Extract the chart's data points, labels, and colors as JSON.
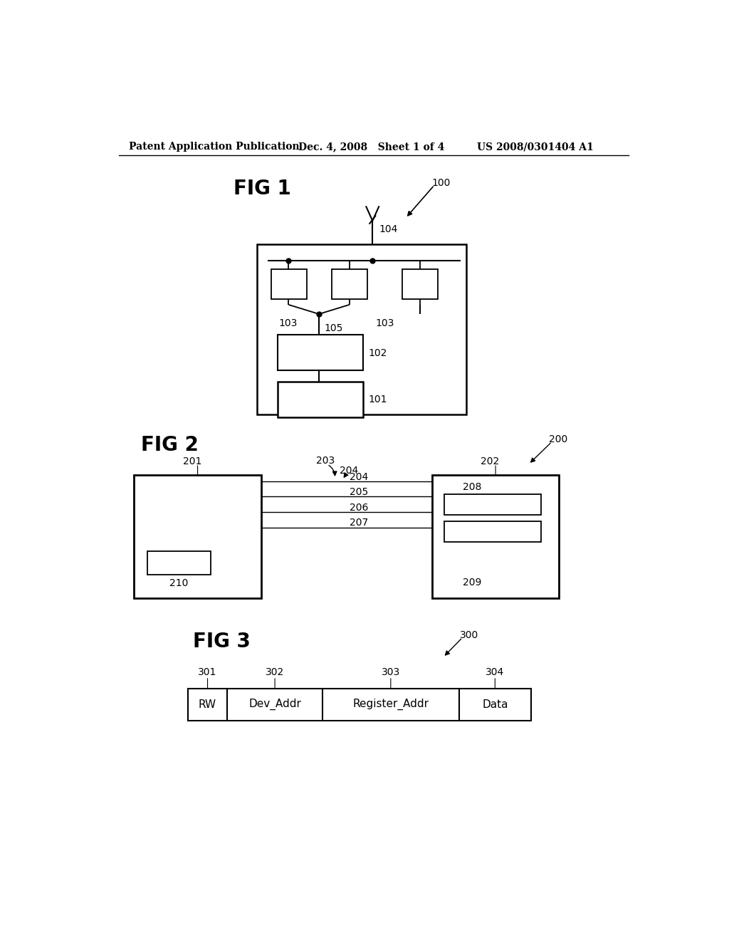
{
  "bg_color": "#ffffff",
  "header_left": "Patent Application Publication",
  "header_mid": "Dec. 4, 2008   Sheet 1 of 4",
  "header_right": "US 2008/0301404 A1"
}
